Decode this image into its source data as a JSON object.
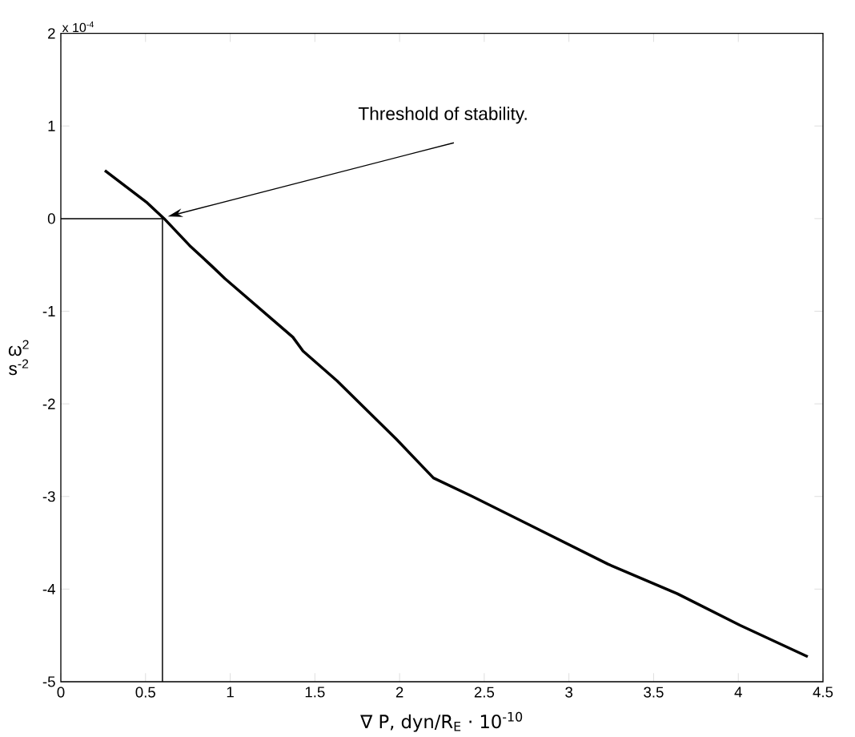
{
  "chart_data": {
    "type": "line",
    "xlabel": "∇ P, dyn/R$_{E}$ · 10$^{-10}$",
    "ylabel": "ω$^{2}$ s$^{-2}$",
    "xlim": [
      0,
      4.5
    ],
    "ylim": [
      -5,
      2
    ],
    "xticks": [
      0,
      0.5,
      1,
      1.5,
      2,
      2.5,
      3,
      3.5,
      4,
      4.5
    ],
    "yticks": [
      -5,
      -4,
      -3,
      -2,
      -1,
      0,
      1,
      2
    ],
    "grid": false,
    "series": [
      {
        "color": "#000000",
        "x": [
          0.26,
          0.51,
          0.61,
          0.76,
          0.89,
          0.97,
          1.37,
          1.43,
          1.63,
          1.98,
          2.2,
          2.43,
          2.76,
          3.23,
          3.64,
          4.01,
          4.41
        ],
        "values": [
          0.52,
          0.17,
          0,
          -0.29,
          -0.51,
          -0.65,
          -1.28,
          -1.43,
          -1.75,
          -2.38,
          -2.8,
          -3.0,
          -3.3,
          -3.73,
          -4.05,
          -4.39,
          -4.73
        ]
      },
      {
        "color": "#000000",
        "x": [
          0,
          0.6,
          0.6
        ],
        "values": [
          0,
          0,
          -5
        ]
      }
    ],
    "annotations": [
      "x 10$^{-4}$",
      "Threshold of stability."
    ]
  }
}
